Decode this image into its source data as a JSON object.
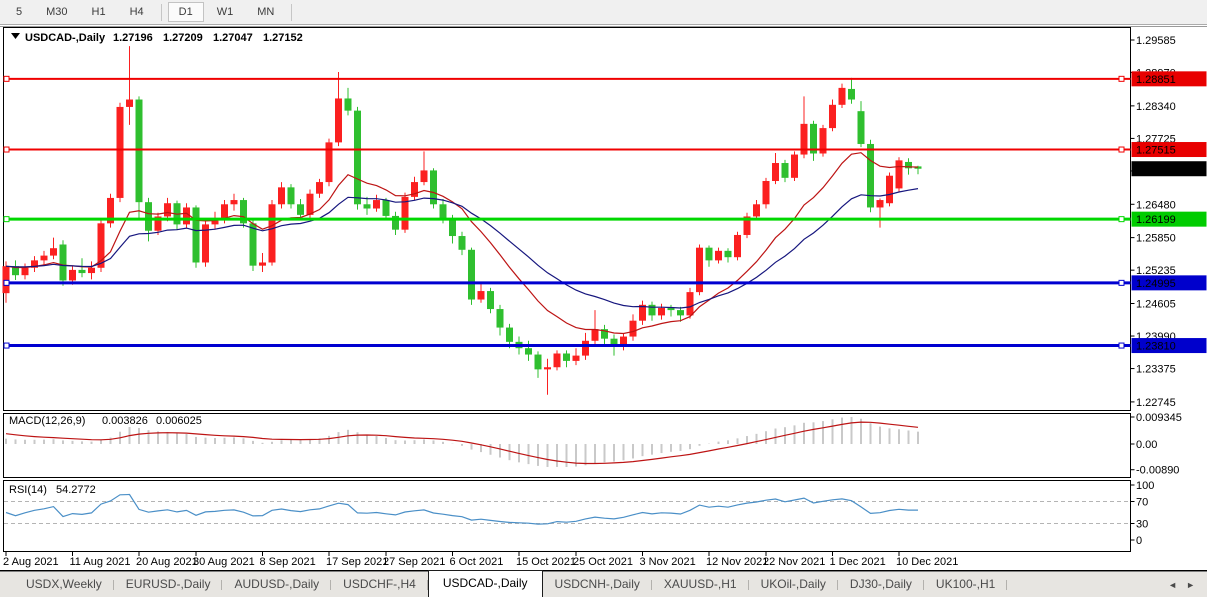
{
  "toolbar": {
    "periods": [
      "5",
      "M30",
      "H1",
      "H4",
      "D1",
      "W1",
      "MN"
    ],
    "active_period": "D1"
  },
  "header": {
    "symbol": "USDCAD-,Daily",
    "open": "1.27196",
    "high": "1.27209",
    "low": "1.27047",
    "close": "1.27152"
  },
  "chart_data": {
    "type": "candlestick",
    "title": "USDCAD-,Daily",
    "up_color": "#fb2020",
    "down_color": "#2fbf2f",
    "price_range": [
      1.22745,
      1.29585
    ],
    "candles": [
      [
        1.248,
        1.254,
        1.2462,
        1.2531
      ],
      [
        1.2531,
        1.2542,
        1.2505,
        1.2514
      ],
      [
        1.2514,
        1.2536,
        1.2506,
        1.2528
      ],
      [
        1.2528,
        1.255,
        1.252,
        1.2542
      ],
      [
        1.2542,
        1.256,
        1.2534,
        1.2551
      ],
      [
        1.2551,
        1.2585,
        1.2544,
        1.2565
      ],
      [
        1.2572,
        1.258,
        1.2494,
        1.2504
      ],
      [
        1.2504,
        1.2532,
        1.2496,
        1.2524
      ],
      [
        1.2524,
        1.2546,
        1.251,
        1.2518
      ],
      [
        1.2518,
        1.254,
        1.2506,
        1.2528
      ],
      [
        1.2528,
        1.262,
        1.252,
        1.2612
      ],
      [
        1.2612,
        1.2668,
        1.2604,
        1.266
      ],
      [
        1.266,
        1.284,
        1.2652,
        1.2832
      ],
      [
        1.2832,
        1.2947,
        1.2798,
        1.2846
      ],
      [
        1.2846,
        1.2852,
        1.2622,
        1.2652
      ],
      [
        1.2652,
        1.266,
        1.2578,
        1.2598
      ],
      [
        1.2598,
        1.2632,
        1.259,
        1.2625
      ],
      [
        1.2625,
        1.266,
        1.2616,
        1.265
      ],
      [
        1.265,
        1.2655,
        1.26,
        1.261
      ],
      [
        1.261,
        1.265,
        1.2602,
        1.2642
      ],
      [
        1.2642,
        1.2646,
        1.2528,
        1.2538
      ],
      [
        1.2538,
        1.2618,
        1.253,
        1.261
      ],
      [
        1.261,
        1.2634,
        1.26,
        1.2622
      ],
      [
        1.2622,
        1.2656,
        1.2612,
        1.2648
      ],
      [
        1.2648,
        1.2668,
        1.2636,
        1.2656
      ],
      [
        1.2656,
        1.266,
        1.2604,
        1.2612
      ],
      [
        1.2612,
        1.2618,
        1.2522,
        1.2532
      ],
      [
        1.2532,
        1.2556,
        1.252,
        1.2538
      ],
      [
        1.2538,
        1.2656,
        1.2532,
        1.2648
      ],
      [
        1.2648,
        1.269,
        1.264,
        1.268
      ],
      [
        1.268,
        1.2686,
        1.264,
        1.2648
      ],
      [
        1.2648,
        1.2658,
        1.2618,
        1.2628
      ],
      [
        1.2628,
        1.2676,
        1.262,
        1.2668
      ],
      [
        1.2668,
        1.2696,
        1.266,
        1.269
      ],
      [
        1.269,
        1.2772,
        1.2682,
        1.2765
      ],
      [
        1.2765,
        1.2898,
        1.2758,
        1.2848
      ],
      [
        1.2848,
        1.2868,
        1.2816,
        1.2825
      ],
      [
        1.2825,
        1.2832,
        1.2638,
        1.2648
      ],
      [
        1.2648,
        1.2662,
        1.2628,
        1.264
      ],
      [
        1.264,
        1.2666,
        1.2634,
        1.2656
      ],
      [
        1.2656,
        1.266,
        1.262,
        1.2626
      ],
      [
        1.2626,
        1.2634,
        1.259,
        1.26
      ],
      [
        1.26,
        1.267,
        1.2594,
        1.2662
      ],
      [
        1.2662,
        1.27,
        1.2656,
        1.269
      ],
      [
        1.269,
        1.2748,
        1.2684,
        1.2712
      ],
      [
        1.2712,
        1.2716,
        1.264,
        1.2648
      ],
      [
        1.2648,
        1.2658,
        1.2612,
        1.262
      ],
      [
        1.262,
        1.2628,
        1.2574,
        1.2588
      ],
      [
        1.2588,
        1.2596,
        1.2552,
        1.2562
      ],
      [
        1.2562,
        1.2566,
        1.2458,
        1.2468
      ],
      [
        1.2468,
        1.2498,
        1.2462,
        1.2484
      ],
      [
        1.2484,
        1.249,
        1.2442,
        1.245
      ],
      [
        1.245,
        1.2458,
        1.24,
        1.2415
      ],
      [
        1.2415,
        1.2422,
        1.2376,
        1.2388
      ],
      [
        1.2388,
        1.2398,
        1.2364,
        1.2376
      ],
      [
        1.2376,
        1.239,
        1.2352,
        1.2364
      ],
      [
        1.2364,
        1.237,
        1.232,
        1.2336
      ],
      [
        1.2336,
        1.2356,
        1.2288,
        1.234
      ],
      [
        1.234,
        1.2372,
        1.2334,
        1.2366
      ],
      [
        1.2366,
        1.2372,
        1.234,
        1.2352
      ],
      [
        1.2352,
        1.2376,
        1.2344,
        1.2362
      ],
      [
        1.2362,
        1.2405,
        1.2354,
        1.239
      ],
      [
        1.239,
        1.2448,
        1.2384,
        1.2412
      ],
      [
        1.2412,
        1.242,
        1.2384,
        1.2394
      ],
      [
        1.2394,
        1.2402,
        1.2362,
        1.238
      ],
      [
        1.238,
        1.2404,
        1.2372,
        1.2398
      ],
      [
        1.2398,
        1.244,
        1.239,
        1.2428
      ],
      [
        1.2428,
        1.2466,
        1.242,
        1.2458
      ],
      [
        1.2458,
        1.2464,
        1.2428,
        1.2438
      ],
      [
        1.2438,
        1.246,
        1.243,
        1.2452
      ],
      [
        1.2452,
        1.2458,
        1.2436,
        1.2448
      ],
      [
        1.2448,
        1.2454,
        1.2426,
        1.2438
      ],
      [
        1.2438,
        1.249,
        1.2432,
        1.2482
      ],
      [
        1.2482,
        1.2572,
        1.2476,
        1.2566
      ],
      [
        1.2566,
        1.257,
        1.253,
        1.2542
      ],
      [
        1.2542,
        1.2566,
        1.2536,
        1.256
      ],
      [
        1.256,
        1.2565,
        1.2538,
        1.2548
      ],
      [
        1.2548,
        1.2596,
        1.2542,
        1.259
      ],
      [
        1.259,
        1.2632,
        1.2584,
        1.2625
      ],
      [
        1.2625,
        1.2656,
        1.2618,
        1.2648
      ],
      [
        1.2648,
        1.2698,
        1.264,
        1.2692
      ],
      [
        1.2692,
        1.2745,
        1.2686,
        1.2726
      ],
      [
        1.2726,
        1.2732,
        1.269,
        1.2698
      ],
      [
        1.2698,
        1.2748,
        1.2692,
        1.2742
      ],
      [
        1.2742,
        1.2852,
        1.2735,
        1.28
      ],
      [
        1.28,
        1.2806,
        1.273,
        1.2744
      ],
      [
        1.2744,
        1.2798,
        1.2738,
        1.2792
      ],
      [
        1.2792,
        1.2846,
        1.2786,
        1.2836
      ],
      [
        1.2836,
        1.2876,
        1.283,
        1.2868
      ],
      [
        1.2866,
        1.2887,
        1.2838,
        1.2846
      ],
      [
        1.2824,
        1.2843,
        1.2756,
        1.2762
      ],
      [
        1.2762,
        1.277,
        1.2633,
        1.2642
      ],
      [
        1.2642,
        1.2659,
        1.2604,
        1.2656
      ],
      [
        1.265,
        1.2708,
        1.2644,
        1.2702
      ],
      [
        1.2678,
        1.2737,
        1.2672,
        1.2731
      ],
      [
        1.2728,
        1.2735,
        1.2704,
        1.2716
      ],
      [
        1.27196,
        1.27209,
        1.27047,
        1.27152
      ]
    ],
    "date_labels": [
      [
        "2 Aug 2021",
        0
      ],
      [
        "11 Aug 2021",
        7
      ],
      [
        "20 Aug 2021",
        14
      ],
      [
        "30 Aug 2021",
        20
      ],
      [
        "8 Sep 2021",
        27
      ],
      [
        "17 Sep 2021",
        34
      ],
      [
        "27 Sep 2021",
        40
      ],
      [
        "6 Oct 2021",
        47
      ],
      [
        "15 Oct 2021",
        54
      ],
      [
        "25 Oct 2021",
        60
      ],
      [
        "3 Nov 2021",
        67
      ],
      [
        "12 Nov 2021",
        74
      ],
      [
        "22 Nov 2021",
        80
      ],
      [
        "1 Dec 2021",
        87
      ],
      [
        "10 Dec 2021",
        94
      ]
    ],
    "price_axis_labels": [
      "1.29585",
      "1.28970",
      "1.28340",
      "1.27725",
      "1.27110",
      "1.26480",
      "1.25850",
      "1.25235",
      "1.24605",
      "1.23990",
      "1.23375",
      "1.22745"
    ],
    "horizontal_lines": [
      {
        "price": 1.28851,
        "color": "#f00000",
        "thickness": 2,
        "name": "resistance-line-upper"
      },
      {
        "price": 1.27515,
        "color": "#f00000",
        "thickness": 2,
        "name": "resistance-line-lower"
      },
      {
        "price": 1.26199,
        "color": "#00d800",
        "thickness": 3,
        "name": "support-line-green"
      },
      {
        "price": 1.24995,
        "color": "#0000d0",
        "thickness": 3,
        "name": "support-line-blue-upper"
      },
      {
        "price": 1.2381,
        "color": "#0000d0",
        "thickness": 3,
        "name": "support-line-blue-lower"
      }
    ],
    "price_badges": [
      {
        "text": "1.28851",
        "price": 1.28851,
        "bg": "#e80000",
        "fg": "#ffffff"
      },
      {
        "text": "1.27515",
        "price": 1.27515,
        "bg": "#e80000",
        "fg": "#ffffff"
      },
      {
        "text": "1.27152",
        "price": 1.27152,
        "bg": "#000000",
        "fg": "#ffffff"
      },
      {
        "text": "1.26199",
        "price": 1.26199,
        "bg": "#00cc00",
        "fg": "#002b00"
      },
      {
        "text": "1.24995",
        "price": 1.24995,
        "bg": "#0000cc",
        "fg": "#ffffff"
      },
      {
        "text": "1.23810",
        "price": 1.2381,
        "bg": "#0000cc",
        "fg": "#ffffff"
      }
    ],
    "current_price": 1.27152,
    "moving_averages": [
      {
        "period": 13,
        "color": "#bd1414",
        "name": "fast-ma"
      },
      {
        "period": 26,
        "color": "#16167e",
        "name": "slow-ma"
      }
    ],
    "macd": {
      "label": "MACD(12,26,9)",
      "main_value": "0.003826",
      "signal_value": "0.006025",
      "axis_labels": [
        "0.009345",
        "0.00",
        "-0.00890"
      ],
      "histogram_color": "#c9c9c9",
      "signal_color": "#bd1414"
    },
    "rsi": {
      "label": "RSI(14)",
      "value": "54.2772",
      "axis_labels": [
        "100",
        "70",
        "30",
        "0"
      ],
      "levels": [
        70,
        30
      ],
      "color": "#4a8fc7"
    }
  },
  "tabs": {
    "items": [
      "USDX,Weekly",
      "EURUSD-,Daily",
      "AUDUSD-,Daily",
      "USDCHF-,H4",
      "USDCAD-,Daily",
      "USDCNH-,Daily",
      "XAUUSD-,H1",
      "UKOil-,Daily",
      "DJ30-,Daily",
      "UK100-,H1"
    ],
    "active": "USDCAD-,Daily"
  }
}
